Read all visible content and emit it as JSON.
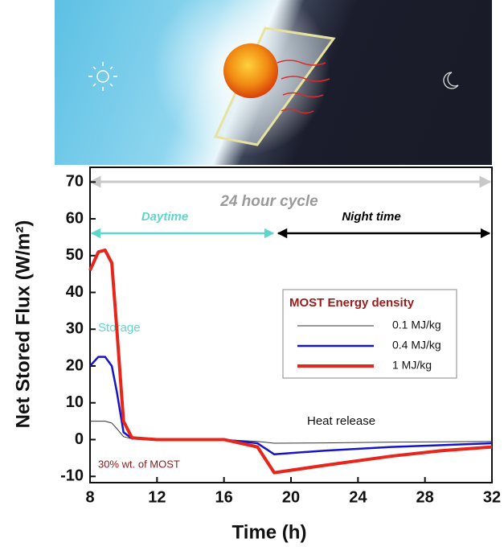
{
  "chart_data": {
    "type": "line",
    "x_label": "Time (h)",
    "y_label": "Net Stored Flux (W/m²)",
    "annotations": {
      "cycle": "24 hour cycle",
      "daytime": "Daytime",
      "nighttime": "Night time",
      "storage": "Storage",
      "heat_release": "Heat release",
      "composition": "30% wt. of MOST"
    },
    "legend_title": "MOST Energy density",
    "x": [
      8,
      8.5,
      8.9,
      9.3,
      9.6,
      10,
      10.5,
      12,
      16,
      18,
      19,
      22,
      26,
      29,
      32
    ],
    "series": [
      {
        "name": "0.1 MJ/kg",
        "color": "#333333",
        "width": 1,
        "values": [
          5,
          5,
          5,
          4.5,
          3,
          0.8,
          0.2,
          0,
          0,
          -0.5,
          -1,
          -0.9,
          -0.7,
          -0.6,
          -0.5
        ]
      },
      {
        "name": "0.4 MJ/kg",
        "color": "#1414c8",
        "width": 2.5,
        "values": [
          20,
          22.5,
          22.5,
          20,
          13,
          2,
          0.3,
          0,
          0,
          -1,
          -4,
          -3,
          -2,
          -1.5,
          -1
        ]
      },
      {
        "name": "1 MJ/kg",
        "color": "#e8251a",
        "width": 4,
        "values": [
          46,
          51,
          51.5,
          48,
          30,
          5,
          0.5,
          0,
          0,
          -2,
          -9,
          -7,
          -4.5,
          -3,
          -2
        ]
      }
    ],
    "xlim": [
      8,
      32
    ],
    "xticks": [
      8,
      12,
      16,
      20,
      24,
      28,
      32
    ],
    "ylim": [
      -11.7,
      74
    ],
    "yticks": [
      -10,
      0,
      10,
      20,
      30,
      40,
      50,
      60,
      70
    ]
  }
}
